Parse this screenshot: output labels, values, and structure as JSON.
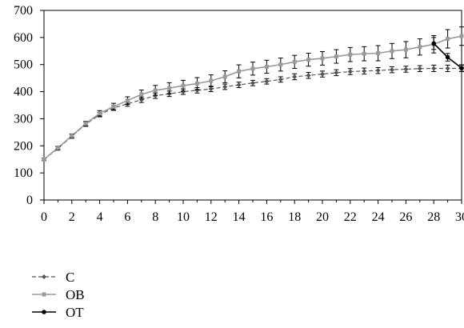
{
  "chart_data": {
    "type": "line",
    "title": "",
    "xlabel": "",
    "ylabel": "",
    "xlim": [
      0,
      30
    ],
    "ylim": [
      0,
      700
    ],
    "x_ticks": [
      0,
      2,
      4,
      6,
      8,
      10,
      12,
      14,
      16,
      18,
      20,
      22,
      24,
      26,
      28,
      30
    ],
    "y_ticks": [
      0,
      100,
      200,
      300,
      400,
      500,
      600,
      700
    ],
    "x": [
      0,
      1,
      2,
      3,
      4,
      5,
      6,
      7,
      8,
      9,
      10,
      11,
      12,
      13,
      14,
      15,
      16,
      17,
      18,
      19,
      20,
      21,
      22,
      23,
      24,
      25,
      26,
      27,
      28,
      29,
      30
    ],
    "grid": false,
    "legend_position": "bottom-left",
    "series": [
      {
        "name": "C",
        "color": "#555555",
        "line_style": "dashed",
        "marker": "diamond",
        "values": [
          150,
          190,
          235,
          280,
          315,
          340,
          355,
          370,
          385,
          392,
          400,
          405,
          410,
          418,
          425,
          432,
          438,
          445,
          455,
          460,
          465,
          470,
          474,
          476,
          478,
          481,
          483,
          485,
          486,
          486,
          486
        ],
        "errors": [
          5,
          6,
          7,
          8,
          8,
          9,
          9,
          10,
          10,
          10,
          10,
          10,
          10,
          10,
          10,
          10,
          10,
          10,
          11,
          11,
          11,
          11,
          11,
          11,
          11,
          11,
          11,
          11,
          12,
          12,
          12
        ]
      },
      {
        "name": "OB",
        "color": "#9a9a9a",
        "line_style": "solid",
        "marker": "square",
        "values": [
          150,
          193,
          237,
          282,
          320,
          345,
          367,
          390,
          405,
          413,
          422,
          430,
          440,
          455,
          475,
          485,
          492,
          500,
          510,
          518,
          523,
          530,
          537,
          540,
          542,
          550,
          555,
          565,
          575,
          595,
          605
        ],
        "errors": [
          5,
          6,
          7,
          8,
          10,
          12,
          14,
          16,
          18,
          20,
          20,
          22,
          22,
          22,
          24,
          24,
          24,
          24,
          24,
          24,
          25,
          25,
          26,
          26,
          28,
          28,
          30,
          30,
          32,
          34,
          34
        ]
      },
      {
        "name": "OT",
        "color": "#000000",
        "line_style": "solid",
        "marker": "circle",
        "x": [
          28,
          29,
          30
        ],
        "values": [
          578,
          527,
          487
        ],
        "errors": [
          22,
          14,
          12
        ]
      }
    ]
  }
}
